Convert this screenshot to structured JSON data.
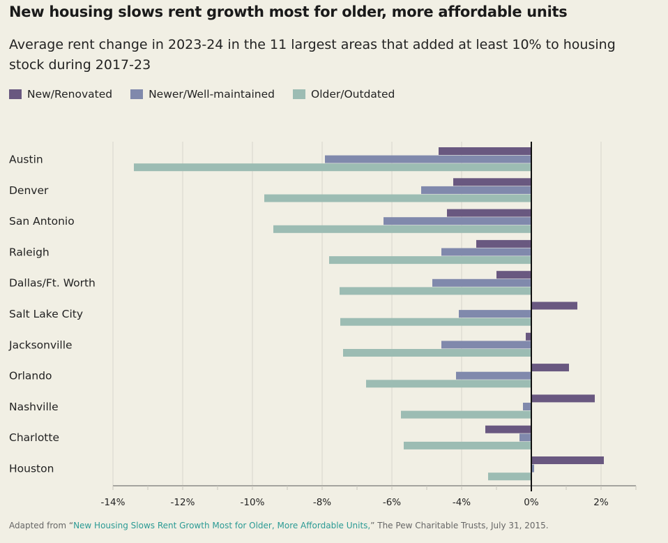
{
  "chart_data": {
    "type": "bar",
    "orientation": "horizontal",
    "title": "New housing slows rent growth most for older, more affordable units",
    "subtitle": "Average rent change in 2023-24 in the 11 largest areas that added at least 10% to housing stock during 2017-23",
    "xlabel": "",
    "ylabel": "",
    "unit": "%",
    "categories": [
      "Austin",
      "Denver",
      "San Antonio",
      "Raleigh",
      "Dallas/Ft. Worth",
      "Salt Lake City",
      "Jacksonville",
      "Orlando",
      "Nashville",
      "Charlotte",
      "Houston"
    ],
    "series": [
      {
        "name": "New/Renovated",
        "color": "#695880",
        "values": [
          -2.66,
          -2.24,
          -2.42,
          -1.58,
          -1.0,
          1.32,
          -0.16,
          1.08,
          1.82,
          -1.32,
          2.08
        ]
      },
      {
        "name": "Newer/Well-maintained",
        "color": "#8089ac",
        "values": [
          -5.92,
          -3.16,
          -4.24,
          -2.58,
          -2.84,
          -2.08,
          -2.58,
          -2.16,
          -0.24,
          -0.34,
          0.08
        ]
      },
      {
        "name": "Older/Outdated",
        "color": "#9cbcb3",
        "values": [
          -11.4,
          -7.66,
          -7.4,
          -5.8,
          -5.5,
          -5.48,
          -5.4,
          -4.74,
          -3.74,
          -3.66,
          -1.24
        ]
      }
    ],
    "x_tick_labels": [
      "-14%",
      "-12%",
      "-10%",
      "-8%",
      "-6%",
      "-4%",
      "",
      "0%",
      "2%"
    ],
    "xlim": [
      -12,
      3
    ],
    "grid": true,
    "legend_position": "top-left"
  },
  "source": {
    "prefix": "Adapted from “",
    "link_text": "New Housing Slows Rent Growth Most for Older, More Affordable Units,",
    "suffix": "” The Pew Charitable Trusts, July 31, 2015."
  }
}
